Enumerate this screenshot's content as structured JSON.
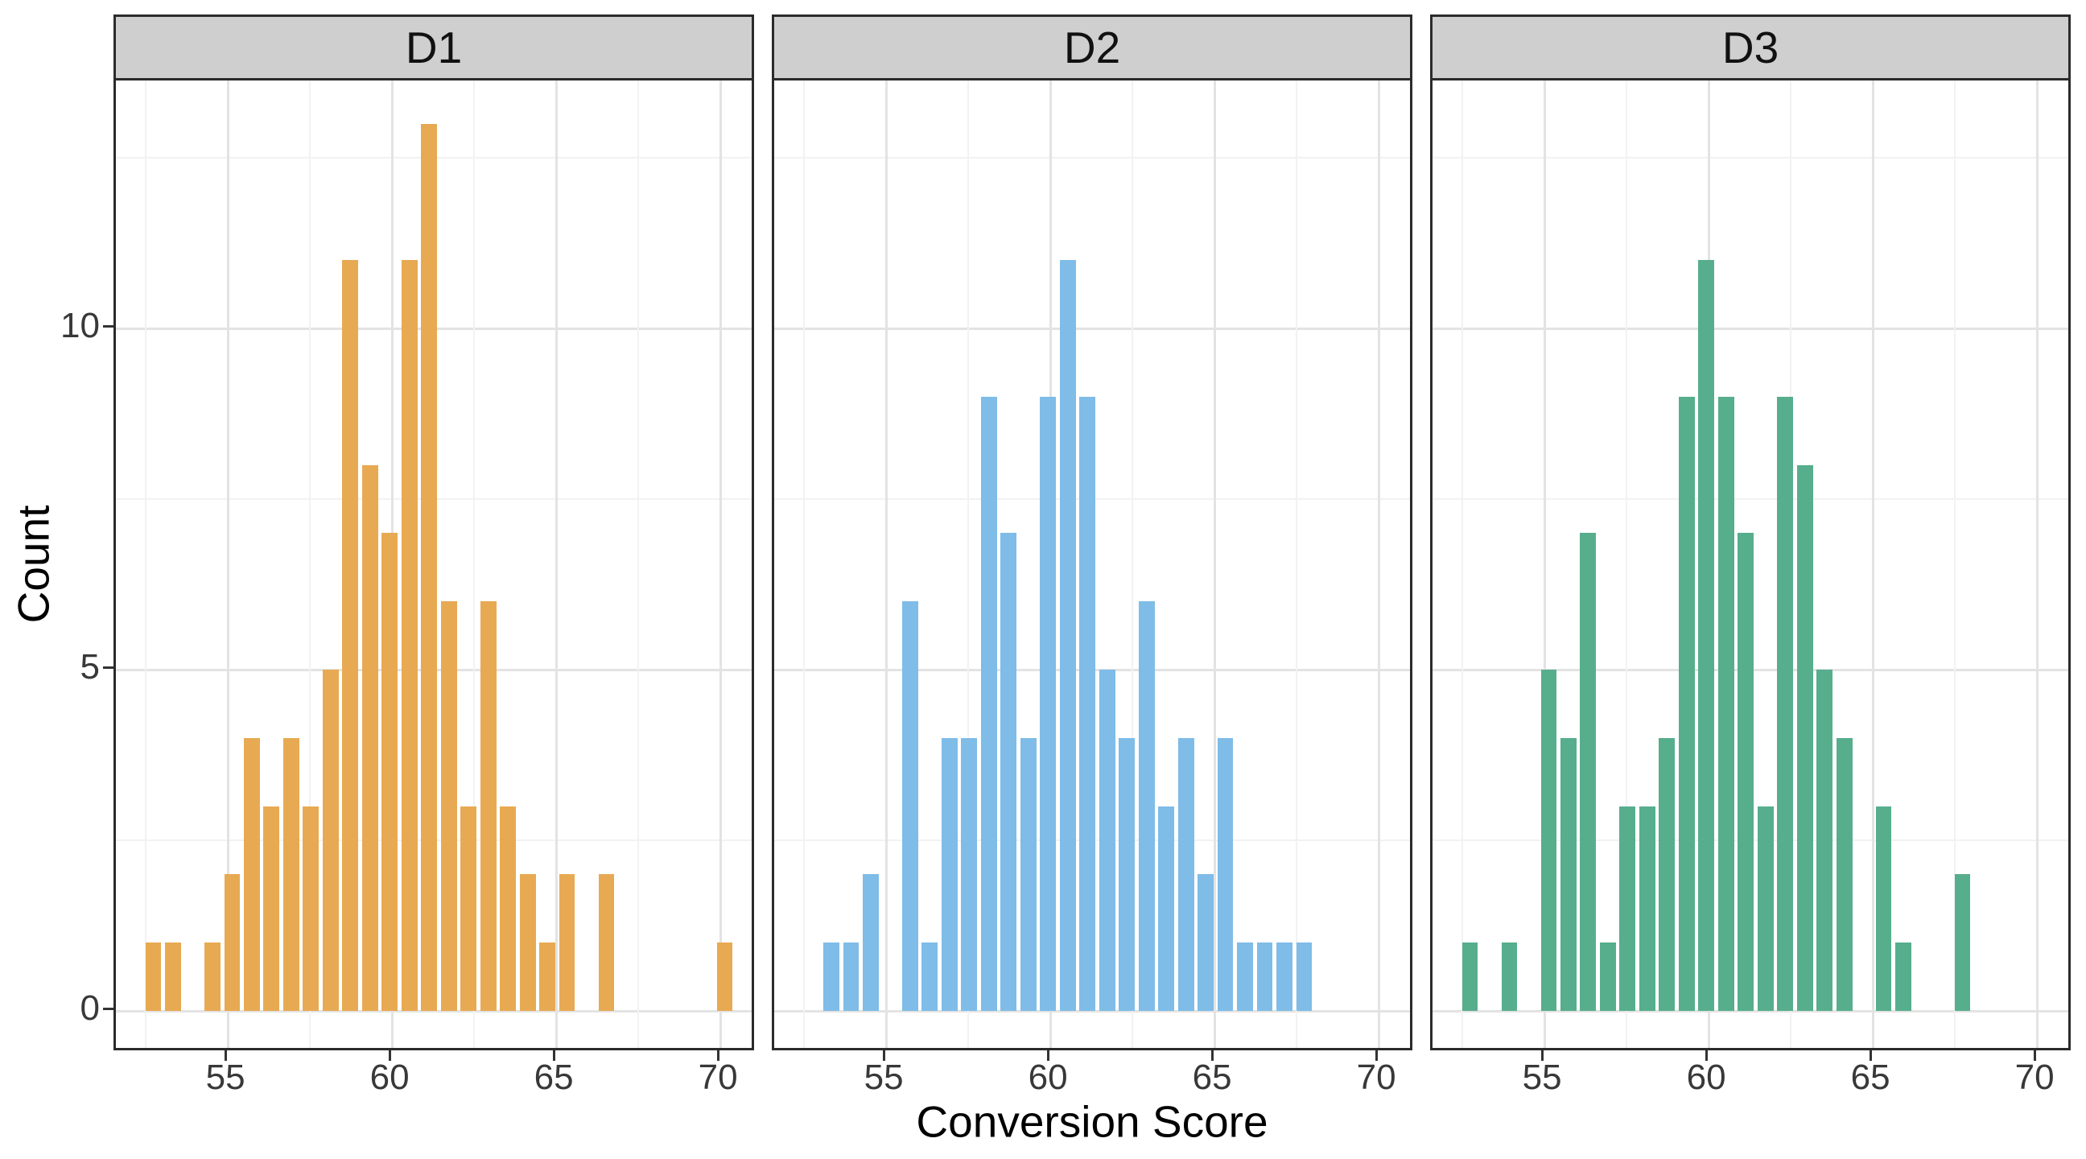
{
  "chart_data": {
    "type": "bar",
    "subtype": "faceted-histogram",
    "title": "",
    "xlabel": "Conversion Score",
    "ylabel": "Count",
    "facets": [
      "D1",
      "D2",
      "D3"
    ],
    "x_ticks": [
      55,
      60,
      65,
      70
    ],
    "x_minor_gridlines": [
      52.5,
      57.5,
      62.5,
      67.5
    ],
    "y_ticks": [
      0,
      5,
      10
    ],
    "y_minor_gridlines": [
      2.5,
      7.5,
      12.5
    ],
    "xlim": [
      51.6,
      71.1
    ],
    "ylim": [
      0,
      13.6
    ],
    "grid": true,
    "bin_width": 0.6,
    "bin_centers": [
      52.73,
      53.33,
      53.93,
      54.53,
      55.13,
      55.73,
      56.33,
      56.93,
      57.53,
      58.13,
      58.73,
      59.33,
      59.93,
      60.53,
      61.13,
      61.73,
      62.33,
      62.93,
      63.53,
      64.13,
      64.73,
      65.33,
      65.93,
      66.53,
      67.13,
      67.73,
      68.33,
      68.93,
      69.53,
      70.13
    ],
    "series": [
      {
        "name": "D1",
        "color": "#E7AA52",
        "total": 100,
        "counts": [
          1,
          1,
          0,
          1,
          2,
          4,
          3,
          4,
          3,
          5,
          11,
          8,
          7,
          11,
          13,
          6,
          3,
          6,
          3,
          2,
          1,
          2,
          0,
          2,
          0,
          0,
          0,
          0,
          0,
          1
        ]
      },
      {
        "name": "D2",
        "color": "#7FBCE8",
        "total": 100,
        "counts": [
          0,
          1,
          1,
          2,
          0,
          6,
          1,
          4,
          4,
          9,
          7,
          4,
          9,
          11,
          9,
          5,
          4,
          6,
          3,
          4,
          2,
          4,
          1,
          1,
          1,
          1,
          0,
          0,
          0,
          0
        ]
      },
      {
        "name": "D3",
        "color": "#57AE8C",
        "total": 100,
        "counts": [
          1,
          0,
          1,
          0,
          5,
          4,
          7,
          1,
          3,
          3,
          4,
          9,
          11,
          9,
          7,
          3,
          9,
          8,
          5,
          4,
          0,
          3,
          1,
          0,
          0,
          2,
          0,
          0,
          0,
          0
        ]
      }
    ]
  },
  "colors": {
    "background": "#ffffff",
    "strip_fill": "#CFCFCF",
    "strip_border": "#2b2b2b",
    "panel_border": "#2b2b2b",
    "grid_major": "#e3e3e3",
    "grid_minor": "#f2f2f2",
    "tick_text": "#383838",
    "axis_title_text": "#000000",
    "bar_d1": "#E7AA52",
    "bar_d2": "#7FBCE8",
    "bar_d3": "#57AE8C"
  }
}
